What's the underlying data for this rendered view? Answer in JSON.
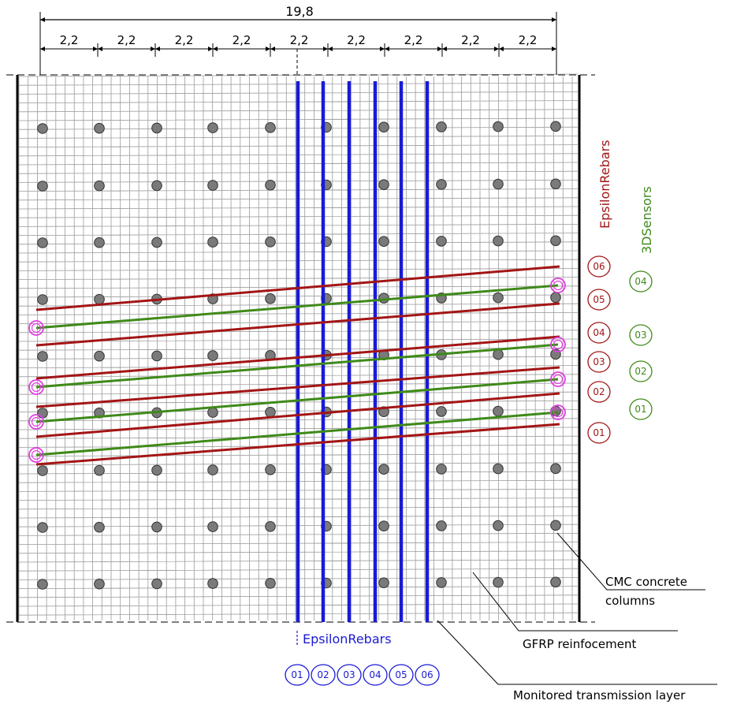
{
  "dimensions": {
    "total": "19,8",
    "segments": [
      "2,2",
      "2,2",
      "2,2",
      "2,2",
      "2,2",
      "2,2",
      "2,2",
      "2,2",
      "2,2"
    ]
  },
  "labels": {
    "epsilon_rebars_side": "EpsilonRebars",
    "sensors_3d_side": "3DSensors",
    "epsilon_rebars_bottom": "EpsilonRebars",
    "cmc_line1": "CMC concrete",
    "cmc_line2": "columns",
    "gfrp": "GFRP reinfocement",
    "monitored": "Monitored transmission layer"
  },
  "red_rebar_ids": [
    "06",
    "05",
    "04",
    "03",
    "02",
    "01"
  ],
  "green_sensor_ids": [
    "04",
    "03",
    "02",
    "01"
  ],
  "blue_rebar_ids": [
    "01",
    "02",
    "03",
    "04",
    "05",
    "06"
  ],
  "colors": {
    "red": "#a31515",
    "green": "#3f8a1a",
    "blue": "#1a1ad6",
    "magenta": "#e040e0",
    "grid": "#9a9a9a",
    "column_fill": "#7a7a7a"
  }
}
